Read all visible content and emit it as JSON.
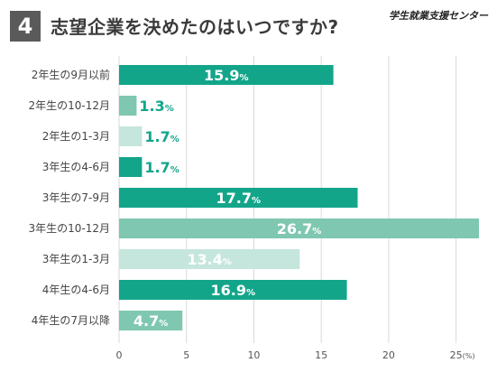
{
  "header": {
    "number": "4",
    "title": "志望企業を決めたのはいつですか?",
    "brand": "学生就業支援センター"
  },
  "colors": {
    "dark": "#13a58a",
    "mid": "#7fc7b0",
    "light": "#c5e6dc",
    "grid": "#d9d9d9"
  },
  "chart_data": {
    "type": "bar",
    "orientation": "horizontal",
    "categories": [
      "2年生の9月以前",
      "2年生の10-12月",
      "2年生の1-3月",
      "3年生の4-6月",
      "3年生の7-9月",
      "3年生の10-12月",
      "3年生の1-3月",
      "4年生の4-6月",
      "4年生の7月以降"
    ],
    "values": [
      15.9,
      1.3,
      1.7,
      1.7,
      17.7,
      26.7,
      13.4,
      16.9,
      4.7
    ],
    "bar_colors": [
      "dark",
      "mid",
      "light",
      "dark",
      "dark",
      "mid",
      "light",
      "dark",
      "mid"
    ],
    "value_suffix": "%",
    "xlim": [
      0,
      26.7
    ],
    "xticks": [
      "0",
      "5",
      "10",
      "15",
      "20",
      "25"
    ],
    "x_unit": "(%)",
    "grid": true
  }
}
